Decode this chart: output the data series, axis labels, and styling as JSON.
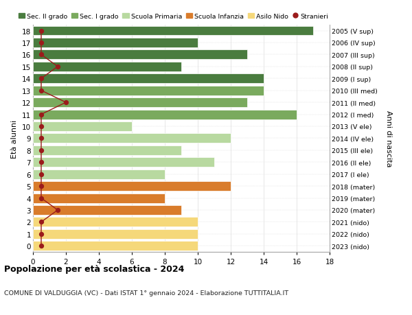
{
  "ages": [
    18,
    17,
    16,
    15,
    14,
    13,
    12,
    11,
    10,
    9,
    8,
    7,
    6,
    5,
    4,
    3,
    2,
    1,
    0
  ],
  "bar_values": [
    17,
    10,
    13,
    9,
    14,
    14,
    13,
    16,
    6,
    12,
    9,
    11,
    8,
    12,
    8,
    9,
    10,
    10,
    10
  ],
  "right_labels": [
    "2005 (V sup)",
    "2006 (IV sup)",
    "2007 (III sup)",
    "2008 (II sup)",
    "2009 (I sup)",
    "2010 (III med)",
    "2011 (II med)",
    "2012 (I med)",
    "2013 (V ele)",
    "2014 (IV ele)",
    "2015 (III ele)",
    "2016 (II ele)",
    "2017 (I ele)",
    "2018 (mater)",
    "2019 (mater)",
    "2020 (mater)",
    "2021 (nido)",
    "2022 (nido)",
    "2023 (nido)"
  ],
  "bar_colors": [
    "#4a7c3f",
    "#4a7c3f",
    "#4a7c3f",
    "#4a7c3f",
    "#4a7c3f",
    "#7aaa5e",
    "#7aaa5e",
    "#7aaa5e",
    "#b8d9a0",
    "#b8d9a0",
    "#b8d9a0",
    "#b8d9a0",
    "#b8d9a0",
    "#d97c2b",
    "#d97c2b",
    "#d97c2b",
    "#f5d87a",
    "#f5d87a",
    "#f5d87a"
  ],
  "stranieri_x": [
    0.5,
    0.5,
    0.5,
    1.5,
    0.5,
    0.5,
    2.0,
    0.5,
    0.5,
    0.5,
    0.5,
    0.5,
    0.5,
    0.5,
    0.5,
    1.5,
    0.5,
    0.5,
    0.5
  ],
  "title": "Popolazione per età scolastica - 2024",
  "subtitle": "COMUNE DI VALDUGGIA (VC) - Dati ISTAT 1° gennaio 2024 - Elaborazione TUTTITALIA.IT",
  "ylabel": "Età alunni",
  "right_ylabel": "Anni di nascita",
  "xlim": [
    0,
    18
  ],
  "xticks": [
    0,
    2,
    4,
    6,
    8,
    10,
    12,
    14,
    16,
    18
  ],
  "legend_entries": [
    {
      "label": "Sec. II grado",
      "color": "#4a7c3f"
    },
    {
      "label": "Sec. I grado",
      "color": "#7aaa5e"
    },
    {
      "label": "Scuola Primaria",
      "color": "#b8d9a0"
    },
    {
      "label": "Scuola Infanzia",
      "color": "#d97c2b"
    },
    {
      "label": "Asilo Nido",
      "color": "#f5d87a"
    },
    {
      "label": "Stranieri",
      "color": "#9b1b1b"
    }
  ],
  "bar_height": 0.8,
  "grid_color": "#dddddd",
  "background_color": "#ffffff"
}
